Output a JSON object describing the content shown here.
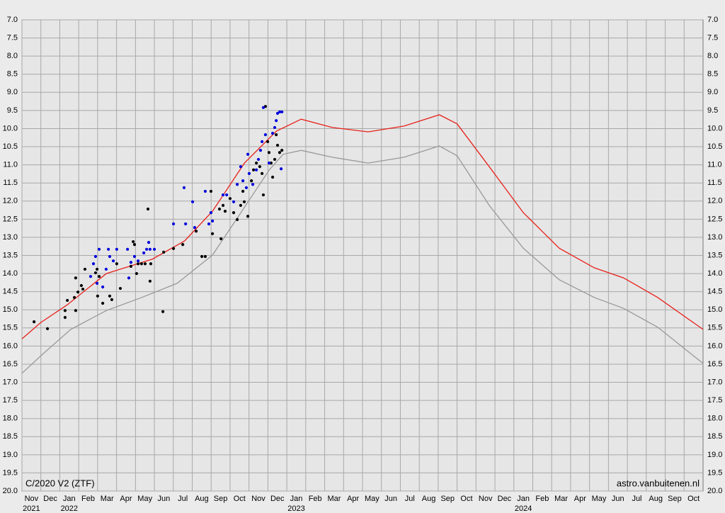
{
  "chart_data": {
    "type": "scatter",
    "title": "C/2020 V2 (ZTF)",
    "source": "astro.vanbuitenen.nl",
    "xlim": [
      0,
      36
    ],
    "ylim": [
      20,
      7
    ],
    "grid": true,
    "xticks": [
      {
        "value": 0.5,
        "label": "Nov"
      },
      {
        "value": 1.5,
        "label": "Dec"
      },
      {
        "value": 2.5,
        "label": "Jan"
      },
      {
        "value": 3.5,
        "label": "Feb"
      },
      {
        "value": 4.5,
        "label": "Mar"
      },
      {
        "value": 5.5,
        "label": "Apr"
      },
      {
        "value": 6.5,
        "label": "May"
      },
      {
        "value": 7.5,
        "label": "Jun"
      },
      {
        "value": 8.5,
        "label": "Jul"
      },
      {
        "value": 9.5,
        "label": "Aug"
      },
      {
        "value": 10.5,
        "label": "Sep"
      },
      {
        "value": 11.5,
        "label": "Oct"
      },
      {
        "value": 12.5,
        "label": "Nov"
      },
      {
        "value": 13.5,
        "label": "Dec"
      },
      {
        "value": 14.5,
        "label": "Jan"
      },
      {
        "value": 15.5,
        "label": "Feb"
      },
      {
        "value": 16.5,
        "label": "Mar"
      },
      {
        "value": 17.5,
        "label": "Apr"
      },
      {
        "value": 18.5,
        "label": "May"
      },
      {
        "value": 19.5,
        "label": "Jun"
      },
      {
        "value": 20.5,
        "label": "Jul"
      },
      {
        "value": 21.5,
        "label": "Aug"
      },
      {
        "value": 22.5,
        "label": "Sep"
      },
      {
        "value": 23.5,
        "label": "Oct"
      },
      {
        "value": 24.5,
        "label": "Nov"
      },
      {
        "value": 25.5,
        "label": "Dec"
      },
      {
        "value": 26.5,
        "label": "Jan"
      },
      {
        "value": 27.5,
        "label": "Feb"
      },
      {
        "value": 28.5,
        "label": "Mar"
      },
      {
        "value": 29.5,
        "label": "Apr"
      },
      {
        "value": 30.5,
        "label": "May"
      },
      {
        "value": 31.5,
        "label": "Jun"
      },
      {
        "value": 32.5,
        "label": "Jul"
      },
      {
        "value": 33.5,
        "label": "Aug"
      },
      {
        "value": 34.5,
        "label": "Sep"
      },
      {
        "value": 35.5,
        "label": "Oct"
      }
    ],
    "xyears": [
      {
        "value": 0.5,
        "label": "2021"
      },
      {
        "value": 2.5,
        "label": "2022"
      },
      {
        "value": 14.5,
        "label": "2023"
      },
      {
        "value": 26.5,
        "label": "2024"
      }
    ],
    "yticks": [
      {
        "value": 7,
        "label": "7.0"
      },
      7.5,
      {
        "value": 8,
        "label": "8.0"
      },
      8.5,
      {
        "value": 9,
        "label": "9.0"
      },
      9.5,
      {
        "value": 10,
        "label": "10.0"
      },
      10.5,
      {
        "value": 11,
        "label": "11.0"
      },
      11.5,
      {
        "value": 12,
        "label": "12.0"
      },
      12.5,
      {
        "value": 13,
        "label": "13.0"
      },
      13.5,
      {
        "value": 14,
        "label": "14.0"
      },
      14.5,
      {
        "value": 15,
        "label": "15.0"
      },
      15.5,
      {
        "value": 16,
        "label": "16.0"
      },
      16.5,
      {
        "value": 17,
        "label": "17.0"
      },
      17.5,
      {
        "value": 18,
        "label": "18.0"
      },
      18.5,
      {
        "value": 19,
        "label": "19.0"
      },
      19.5,
      {
        "value": 20,
        "label": "20.0"
      }
    ],
    "series": [
      {
        "mode": "line",
        "color": "#999999",
        "x": [
          0,
          1.08,
          2.58,
          4.46,
          6.33,
          8.2,
          10.07,
          11.57,
          13.07,
          13.8,
          14.76,
          16.4,
          18.3,
          20.2,
          22.06,
          23,
          24.7,
          26.5,
          28.4,
          30.25,
          31.8,
          33.6,
          36
        ],
        "values": [
          16.75,
          16.23,
          15.54,
          15.02,
          14.66,
          14.27,
          13.49,
          12.32,
          11.14,
          10.71,
          10.6,
          10.79,
          10.95,
          10.79,
          10.48,
          10.75,
          12.12,
          13.3,
          14.17,
          14.66,
          14.96,
          15.48,
          16.48
        ]
      },
      {
        "mode": "line",
        "color": "#e8201a",
        "x": [
          0,
          1,
          2.4,
          4.46,
          6.9,
          8.6,
          10.07,
          11.76,
          13.45,
          14.76,
          16.4,
          18.3,
          20.2,
          22.06,
          23,
          24.7,
          26.5,
          28.4,
          30.25,
          31.8,
          33.6,
          36
        ],
        "values": [
          15.8,
          15.35,
          14.86,
          14.0,
          13.6,
          13.1,
          12.28,
          10.95,
          10.07,
          9.74,
          9.97,
          10.09,
          9.93,
          9.62,
          9.87,
          11.05,
          12.32,
          13.3,
          13.84,
          14.12,
          14.66,
          15.54
        ]
      },
      {
        "mode": "markers",
        "color": "#000000",
        "x": [
          0.64,
          1.35,
          2.28,
          2.28,
          2.4,
          2.84,
          2.77,
          2.96,
          3.14,
          3.22,
          3.33,
          2.84,
          3.89,
          3.97,
          4.0,
          4.08,
          4.27,
          4.64,
          4.75,
          5.01,
          5.2,
          5.76,
          5.88,
          5.95,
          6.06,
          6.14,
          6.32,
          6.51,
          6.66,
          6.77,
          6.81,
          7.45,
          7.49,
          8.01,
          8.5,
          9.21,
          9.51,
          9.69,
          9.99,
          10.07,
          10.52,
          10.44,
          10.63,
          10.74,
          11.0,
          11.19,
          11.38,
          11.56,
          11.68,
          11.75,
          11.94,
          12.13,
          12.24,
          12.39,
          12.57,
          12.69,
          12.76,
          12.87,
          12.99,
          13.06,
          13.17,
          13.25,
          13.36,
          13.44,
          13.51,
          13.62,
          13.74
        ],
        "values": [
          15.33,
          15.52,
          15.02,
          15.21,
          14.74,
          15.02,
          14.66,
          14.51,
          14.33,
          14.43,
          13.88,
          14.12,
          13.98,
          13.88,
          14.62,
          14.08,
          14.82,
          14.62,
          14.72,
          13.73,
          14.41,
          13.8,
          13.12,
          13.2,
          14.0,
          13.73,
          13.73,
          13.73,
          12.22,
          14.21,
          13.73,
          15.05,
          13.41,
          13.31,
          13.2,
          12.83,
          13.53,
          13.53,
          11.73,
          12.9,
          13.04,
          12.22,
          12.12,
          12.28,
          11.93,
          12.32,
          12.51,
          12.12,
          11.73,
          12.02,
          12.42,
          11.44,
          11.14,
          10.95,
          11.05,
          11.24,
          11.83,
          9.39,
          10.36,
          10.66,
          10.95,
          11.34,
          10.85,
          10.17,
          10.46,
          10.66,
          10.6
        ]
      },
      {
        "mode": "markers",
        "color": "#0000dd",
        "x": [
          3.63,
          3.78,
          3.89,
          3.97,
          4.08,
          4.27,
          4.45,
          4.57,
          4.64,
          4.83,
          5.01,
          5.58,
          5.65,
          5.76,
          5.95,
          6.14,
          6.44,
          6.59,
          6.7,
          6.77,
          7.0,
          8.01,
          8.65,
          8.57,
          9.02,
          9.13,
          9.69,
          9.88,
          9.99,
          10.07,
          10.63,
          10.82,
          11.19,
          11.38,
          11.56,
          11.68,
          11.86,
          11.94,
          12.01,
          12.2,
          12.39,
          12.5,
          12.61,
          12.69,
          12.76,
          12.87,
          13.06,
          13.25,
          13.36,
          13.44,
          13.51,
          13.62,
          13.7,
          13.74
        ],
        "values": [
          14.08,
          13.73,
          13.53,
          14.27,
          13.33,
          14.37,
          13.88,
          13.33,
          13.53,
          13.65,
          13.33,
          13.33,
          14.12,
          13.69,
          13.53,
          13.65,
          13.43,
          13.33,
          13.14,
          13.33,
          13.33,
          12.63,
          12.63,
          11.63,
          12.02,
          12.73,
          11.73,
          12.63,
          12.32,
          12.55,
          11.83,
          11.83,
          12.02,
          11.54,
          11.05,
          11.44,
          11.63,
          10.71,
          11.24,
          11.54,
          11.14,
          10.85,
          10.6,
          10.36,
          9.42,
          10.17,
          10.95,
          10.13,
          9.97,
          9.78,
          9.58,
          9.54,
          11.11,
          9.54
        ]
      }
    ]
  }
}
